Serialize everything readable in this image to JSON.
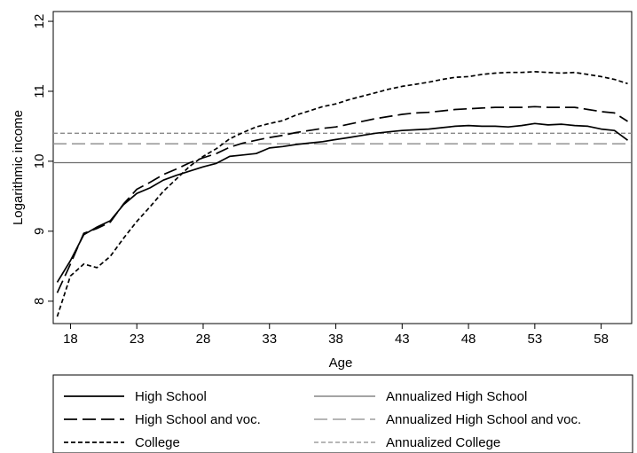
{
  "chart_data": {
    "type": "line",
    "xlabel": "Age",
    "ylabel": "Logarithmic income",
    "xlim": [
      16.7,
      60.3
    ],
    "ylim": [
      7.68,
      12.14
    ],
    "x_ticks": [
      18,
      23,
      28,
      33,
      38,
      43,
      48,
      53,
      58
    ],
    "y_ticks": [
      8,
      9,
      10,
      11,
      12
    ],
    "grid": false,
    "legend_position": "bottom",
    "series": [
      {
        "name": "High School",
        "style": "solid",
        "color": "#000000",
        "x": [
          17,
          18,
          19,
          20,
          21,
          22,
          23,
          24,
          25,
          26,
          27,
          28,
          29,
          30,
          31,
          32,
          33,
          34,
          35,
          36,
          37,
          38,
          39,
          40,
          41,
          42,
          43,
          44,
          45,
          46,
          47,
          48,
          49,
          50,
          51,
          52,
          53,
          54,
          55,
          56,
          57,
          58,
          59,
          60
        ],
        "y": [
          8.27,
          8.58,
          8.95,
          9.06,
          9.15,
          9.38,
          9.54,
          9.62,
          9.73,
          9.8,
          9.86,
          9.92,
          9.97,
          10.07,
          10.09,
          10.11,
          10.19,
          10.21,
          10.24,
          10.26,
          10.28,
          10.31,
          10.34,
          10.37,
          10.4,
          10.42,
          10.44,
          10.45,
          10.46,
          10.48,
          10.5,
          10.51,
          10.5,
          10.5,
          10.49,
          10.51,
          10.54,
          10.52,
          10.53,
          10.51,
          10.5,
          10.46,
          10.44,
          10.3
        ]
      },
      {
        "name": "High School and voc.",
        "style": "long-dash",
        "color": "#000000",
        "x": [
          17,
          18,
          19,
          20,
          21,
          22,
          23,
          24,
          25,
          26,
          27,
          28,
          29,
          30,
          31,
          32,
          33,
          34,
          35,
          36,
          37,
          38,
          39,
          40,
          41,
          42,
          43,
          44,
          45,
          46,
          47,
          48,
          49,
          50,
          51,
          52,
          53,
          54,
          55,
          56,
          57,
          58,
          59,
          60
        ],
        "y": [
          8.12,
          8.53,
          8.97,
          9.04,
          9.13,
          9.39,
          9.6,
          9.7,
          9.81,
          9.89,
          9.98,
          10.05,
          10.11,
          10.2,
          10.26,
          10.3,
          10.34,
          10.37,
          10.41,
          10.44,
          10.47,
          10.49,
          10.53,
          10.57,
          10.61,
          10.64,
          10.67,
          10.69,
          10.7,
          10.72,
          10.74,
          10.75,
          10.76,
          10.77,
          10.77,
          10.77,
          10.78,
          10.77,
          10.77,
          10.77,
          10.74,
          10.71,
          10.69,
          10.57
        ]
      },
      {
        "name": "College",
        "style": "short-dash",
        "color": "#000000",
        "x": [
          17,
          18,
          19,
          20,
          21,
          22,
          23,
          24,
          25,
          26,
          27,
          28,
          29,
          30,
          31,
          32,
          33,
          34,
          35,
          36,
          37,
          38,
          39,
          40,
          41,
          42,
          43,
          44,
          45,
          46,
          47,
          48,
          49,
          50,
          51,
          52,
          53,
          54,
          55,
          56,
          57,
          58,
          59,
          60
        ],
        "y": [
          7.78,
          8.36,
          8.53,
          8.48,
          8.64,
          8.9,
          9.14,
          9.35,
          9.57,
          9.75,
          9.93,
          10.07,
          10.18,
          10.32,
          10.41,
          10.49,
          10.54,
          10.58,
          10.66,
          10.72,
          10.78,
          10.82,
          10.88,
          10.93,
          10.98,
          11.03,
          11.07,
          11.1,
          11.13,
          11.17,
          11.2,
          11.21,
          11.24,
          11.26,
          11.27,
          11.27,
          11.28,
          11.27,
          11.26,
          11.27,
          11.24,
          11.21,
          11.17,
          11.11
        ]
      }
    ],
    "reference_lines": [
      {
        "name": "Annualized High School",
        "y": 9.98,
        "style": "solid",
        "color": "#6e6e6e"
      },
      {
        "name": "Annualized High School and voc.",
        "y": 10.25,
        "style": "long-dash",
        "color": "#8a8a8a"
      },
      {
        "name": "Annualized College",
        "y": 10.4,
        "style": "short-dash",
        "color": "#8a8a8a"
      }
    ]
  }
}
